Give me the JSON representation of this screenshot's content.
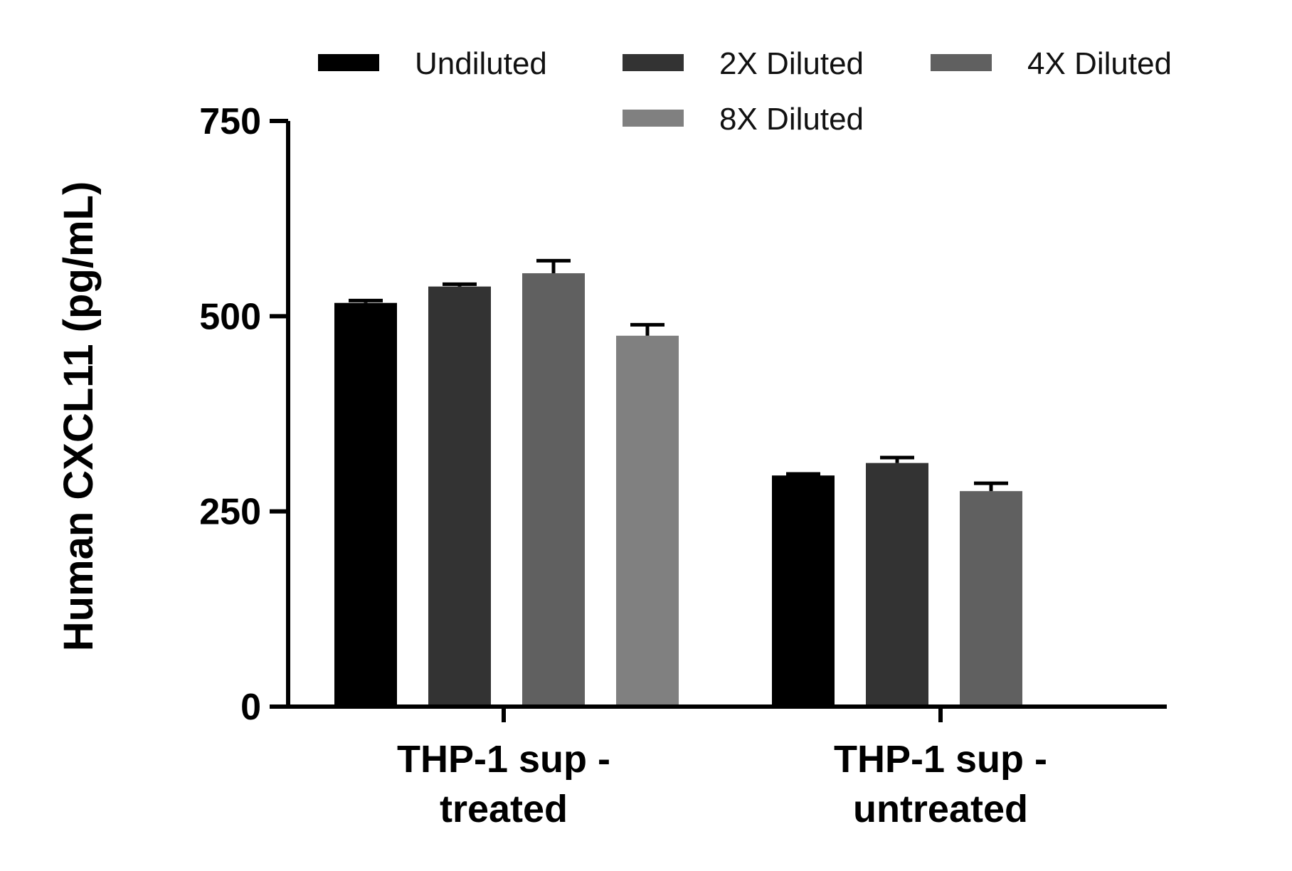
{
  "chart_data": {
    "type": "bar",
    "title": "",
    "xlabel": "",
    "ylabel": "Human CXCL11 (pg/mL)",
    "ylim": [
      0,
      750
    ],
    "yticks": [
      0,
      250,
      500,
      750
    ],
    "grid": false,
    "legend_position": "top",
    "categories": [
      [
        "THP-1 sup -",
        "treated"
      ],
      [
        "THP-1 sup -",
        "untreated"
      ]
    ],
    "series": [
      {
        "name": "Undiluted",
        "color": "#000000",
        "values": [
          517,
          296
        ],
        "errors": [
          3,
          2
        ]
      },
      {
        "name": "2X Diluted",
        "color": "#333333",
        "values": [
          538,
          312
        ],
        "errors": [
          3,
          7
        ]
      },
      {
        "name": "4X Diluted",
        "color": "#606060",
        "values": [
          555,
          276
        ],
        "errors": [
          16,
          10
        ]
      },
      {
        "name": "8X Diluted",
        "color": "#808080",
        "values": [
          475,
          null
        ],
        "errors": [
          14,
          null
        ]
      }
    ]
  }
}
